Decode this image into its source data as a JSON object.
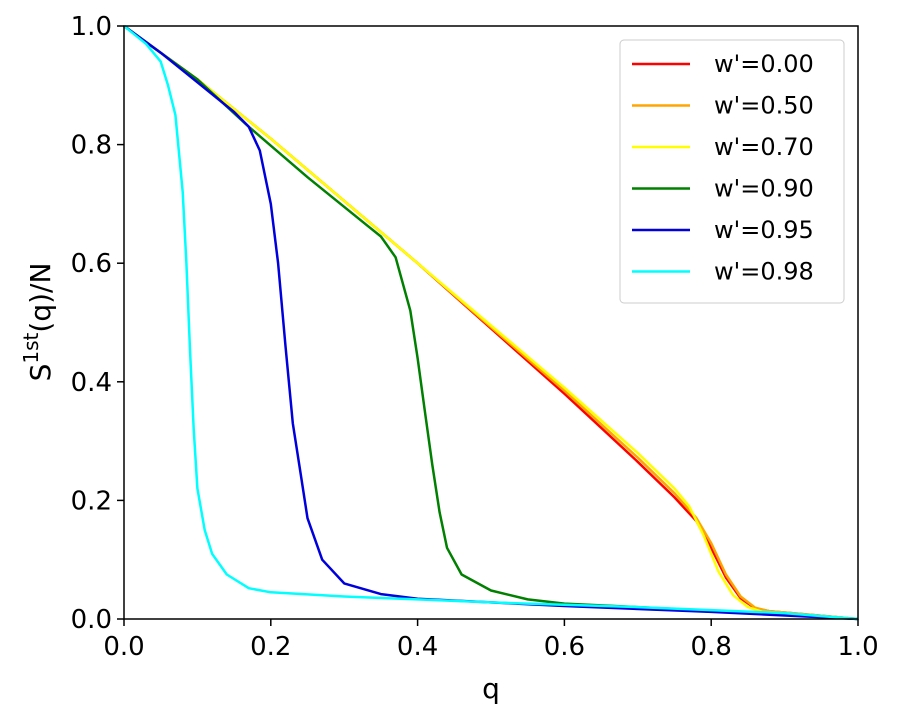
{
  "chart_data": {
    "type": "line",
    "xlabel": "q",
    "ylabel": {
      "base": "S",
      "sup": "1st",
      "rest": "(q)/N"
    },
    "xlim": [
      0.0,
      1.0
    ],
    "ylim": [
      0.0,
      1.0
    ],
    "xticks": [
      "0.0",
      "0.2",
      "0.4",
      "0.6",
      "0.8",
      "1.0"
    ],
    "yticks": [
      "0.0",
      "0.2",
      "0.4",
      "0.6",
      "0.8",
      "1.0"
    ],
    "grid": false,
    "legend_position": "top-right",
    "series": [
      {
        "name": "w'=0.00",
        "color": "#ff0000",
        "x": [
          0,
          0.05,
          0.1,
          0.2,
          0.3,
          0.4,
          0.5,
          0.6,
          0.7,
          0.75,
          0.78,
          0.8,
          0.82,
          0.84,
          0.86,
          0.88,
          0.9,
          1.0
        ],
        "y": [
          1.0,
          0.955,
          0.91,
          0.81,
          0.705,
          0.6,
          0.49,
          0.38,
          0.265,
          0.205,
          0.165,
          0.12,
          0.07,
          0.035,
          0.018,
          0.013,
          0.011,
          0.0
        ]
      },
      {
        "name": "w'=0.50",
        "color": "#ffa500",
        "x": [
          0,
          0.05,
          0.1,
          0.2,
          0.3,
          0.4,
          0.5,
          0.6,
          0.7,
          0.75,
          0.78,
          0.8,
          0.82,
          0.84,
          0.86,
          0.88,
          0.9,
          1.0
        ],
        "y": [
          1.0,
          0.955,
          0.91,
          0.81,
          0.705,
          0.6,
          0.492,
          0.385,
          0.272,
          0.212,
          0.17,
          0.128,
          0.075,
          0.038,
          0.019,
          0.013,
          0.011,
          0.0
        ]
      },
      {
        "name": "w'=0.70",
        "color": "#ffff00",
        "x": [
          0,
          0.05,
          0.1,
          0.2,
          0.3,
          0.4,
          0.5,
          0.6,
          0.7,
          0.75,
          0.77,
          0.79,
          0.81,
          0.83,
          0.85,
          0.87,
          0.9,
          1.0
        ],
        "y": [
          1.0,
          0.955,
          0.91,
          0.81,
          0.705,
          0.6,
          0.495,
          0.39,
          0.28,
          0.22,
          0.19,
          0.14,
          0.08,
          0.04,
          0.02,
          0.012,
          0.01,
          0.0
        ]
      },
      {
        "name": "w'=0.90",
        "color": "#008000",
        "x": [
          0,
          0.05,
          0.1,
          0.17,
          0.25,
          0.33,
          0.35,
          0.37,
          0.39,
          0.4,
          0.41,
          0.42,
          0.43,
          0.44,
          0.46,
          0.5,
          0.55,
          0.6,
          0.7,
          0.8,
          0.9,
          1.0
        ],
        "y": [
          1.0,
          0.955,
          0.91,
          0.83,
          0.745,
          0.665,
          0.645,
          0.61,
          0.52,
          0.44,
          0.35,
          0.26,
          0.18,
          0.12,
          0.075,
          0.048,
          0.033,
          0.026,
          0.02,
          0.014,
          0.008,
          0.0
        ]
      },
      {
        "name": "w'=0.95",
        "color": "#0000dd",
        "x": [
          0,
          0.05,
          0.1,
          0.15,
          0.17,
          0.185,
          0.2,
          0.21,
          0.22,
          0.23,
          0.24,
          0.25,
          0.27,
          0.3,
          0.35,
          0.4,
          0.5,
          0.6,
          0.8,
          1.0
        ],
        "y": [
          1.0,
          0.955,
          0.905,
          0.855,
          0.83,
          0.79,
          0.7,
          0.6,
          0.46,
          0.33,
          0.25,
          0.17,
          0.1,
          0.06,
          0.042,
          0.034,
          0.028,
          0.022,
          0.012,
          0.0
        ]
      },
      {
        "name": "w'=0.98",
        "color": "#00ffff",
        "x": [
          0,
          0.03,
          0.05,
          0.06,
          0.07,
          0.08,
          0.085,
          0.09,
          0.095,
          0.1,
          0.11,
          0.12,
          0.14,
          0.17,
          0.2,
          0.3,
          0.4,
          0.5,
          0.7,
          0.9,
          1.0
        ],
        "y": [
          1.0,
          0.97,
          0.94,
          0.9,
          0.85,
          0.72,
          0.6,
          0.45,
          0.32,
          0.22,
          0.15,
          0.11,
          0.075,
          0.052,
          0.045,
          0.038,
          0.033,
          0.028,
          0.02,
          0.01,
          0.0
        ]
      }
    ]
  }
}
